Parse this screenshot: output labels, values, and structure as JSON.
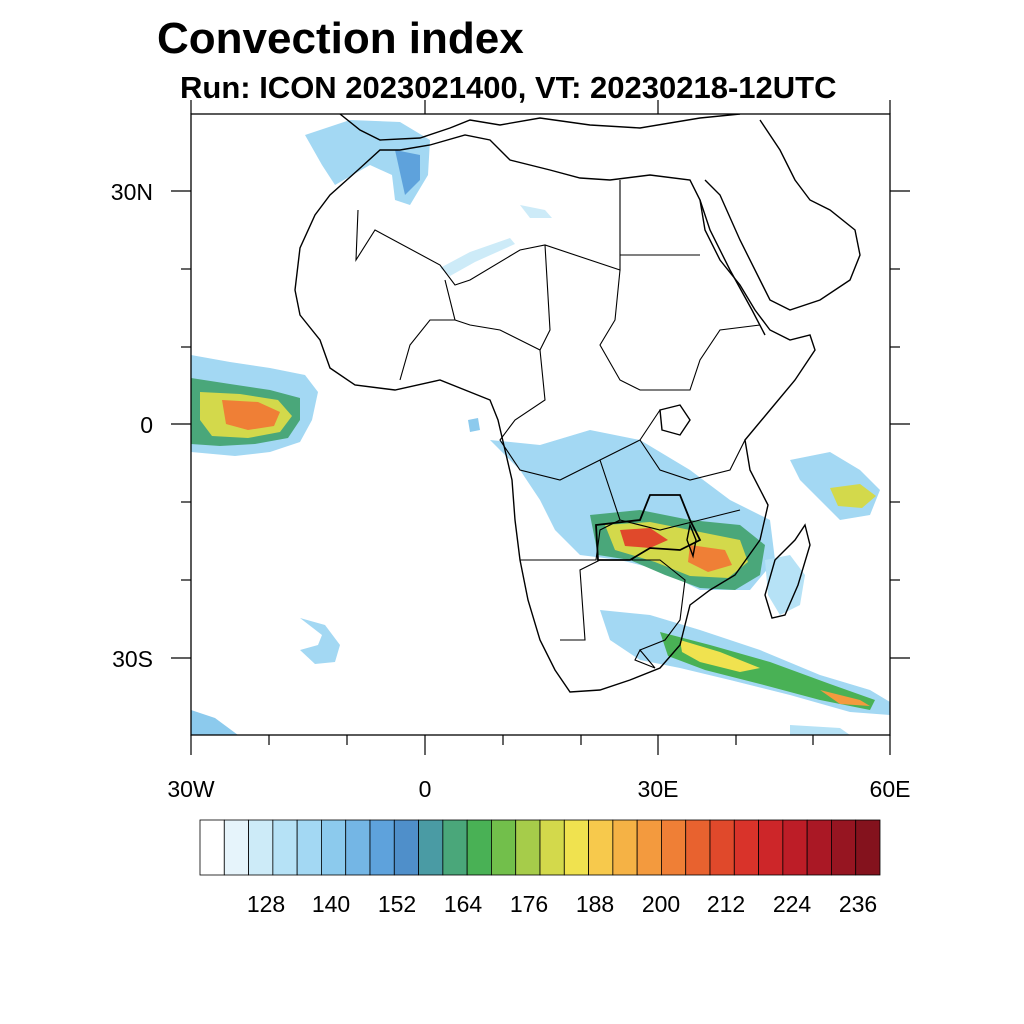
{
  "title": "Convection index",
  "subtitle": "Run: ICON 2023021400,  VT: 20230218-12UTC",
  "map": {
    "lat_labels": [
      "30N",
      "0",
      "30S"
    ],
    "lon_labels": [
      "30W",
      "0",
      "30E",
      "60E"
    ],
    "extent": {
      "lon": [
        -30,
        60
      ],
      "lat": [
        -40,
        40
      ]
    }
  },
  "colorbar": {
    "tick_labels": [
      "128",
      "140",
      "152",
      "164",
      "176",
      "188",
      "200",
      "212",
      "224",
      "236"
    ],
    "colors": [
      "#ffffff",
      "#e6f4fb",
      "#cdebf8",
      "#b6e2f6",
      "#a3d8f3",
      "#8ccaed",
      "#74b6e5",
      "#5ea2dc",
      "#4f8fca",
      "#4a9ba4",
      "#4aa77a",
      "#49b155",
      "#72bf4b",
      "#a6cc4a",
      "#d3d94b",
      "#f0e24f",
      "#f7c94c",
      "#f5b245",
      "#f39a3e",
      "#ef7f36",
      "#e8622f",
      "#e0492b",
      "#d9332a",
      "#cd2629",
      "#bd1d27",
      "#aa1825",
      "#961521",
      "#84121d"
    ]
  }
}
